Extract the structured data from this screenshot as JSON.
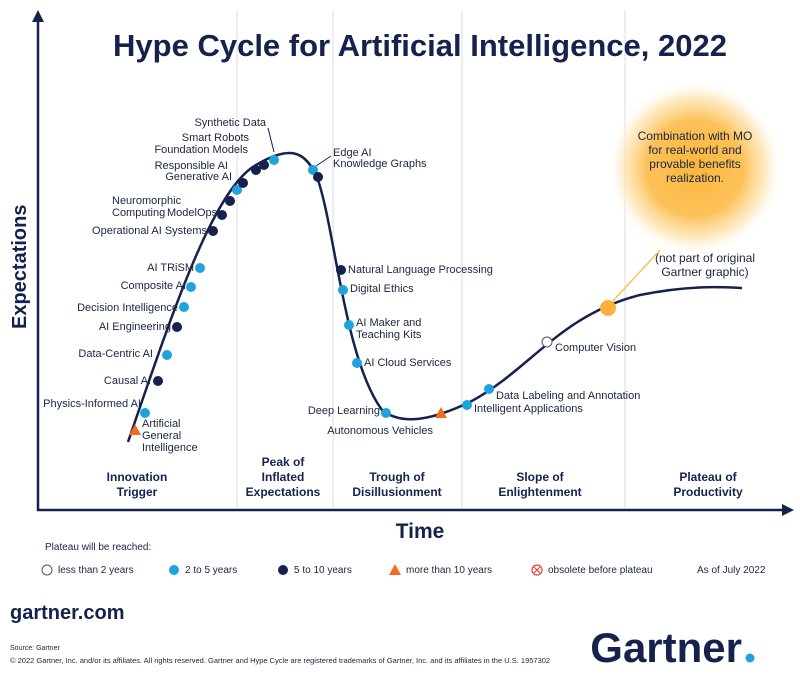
{
  "title": "Hype Cycle for Artificial Intelligence, 2022",
  "y_axis_label": "Expectations",
  "x_axis_label": "Time",
  "phases": [
    "Innovation Trigger",
    "Peak of Inflated Expectations",
    "Trough of Disillusionment",
    "Slope of Enlightenment",
    "Plateau of Productivity"
  ],
  "nodes": [
    {
      "label": "Artificial General Intelligence",
      "plateau": 3
    },
    {
      "label": "Physics-Informed AI",
      "plateau": 1
    },
    {
      "label": "Causal AI",
      "plateau": 2
    },
    {
      "label": "Data-Centric AI",
      "plateau": 1
    },
    {
      "label": "AI Engineering",
      "plateau": 2
    },
    {
      "label": "Decision Intelligence",
      "plateau": 1
    },
    {
      "label": "Composite AI",
      "plateau": 1
    },
    {
      "label": "AI TRiSM",
      "plateau": 1
    },
    {
      "label": "Operational AI Systems",
      "plateau": 2
    },
    {
      "label": "Neuromorphic Computing",
      "plateau": 2
    },
    {
      "label": "ModelOps",
      "plateau": 2
    },
    {
      "label": "Generative AI",
      "plateau": 1
    },
    {
      "label": "Responsible AI",
      "plateau": 2
    },
    {
      "label": "Foundation Models",
      "plateau": 2
    },
    {
      "label": "Smart Robots",
      "plateau": 2
    },
    {
      "label": "Synthetic Data",
      "plateau": 1
    },
    {
      "label": "Edge AI",
      "plateau": 1
    },
    {
      "label": "Knowledge Graphs",
      "plateau": 2
    },
    {
      "label": "Natural Language Processing",
      "plateau": 2
    },
    {
      "label": "Digital Ethics",
      "plateau": 1
    },
    {
      "label": "AI Maker and Teaching Kits",
      "plateau": 1
    },
    {
      "label": "AI Cloud Services",
      "plateau": 1
    },
    {
      "label": "Deep Learning",
      "plateau": 1
    },
    {
      "label": "Autonomous Vehicles",
      "plateau": 3
    },
    {
      "label": "Intelligent Applications",
      "plateau": 1
    },
    {
      "label": "Data Labeling and Annotation",
      "plateau": 1
    },
    {
      "label": "Computer Vision",
      "plateau": 0
    }
  ],
  "annotation": {
    "text": "Combination with MO for real-world and provable benefits realization.",
    "note": "(not part of original Gartner graphic)"
  },
  "legend": {
    "title": "Plateau will be reached:",
    "items": [
      "less than 2 years",
      "2 to 5 years",
      "5 to 10 years",
      "more than 10 years",
      "obsolete before plateau"
    ],
    "date": "As of July 2022"
  },
  "footer": {
    "site": "gartner.com",
    "source": "Source: Gartner",
    "copyright": "© 2022 Gartner, Inc. and/or its affiliates. All rights reserved. Gartner and Hype Cycle are registered trademarks of Gartner, Inc. and its affiliates in the U.S. 1957302",
    "logo": "Gartner"
  }
}
